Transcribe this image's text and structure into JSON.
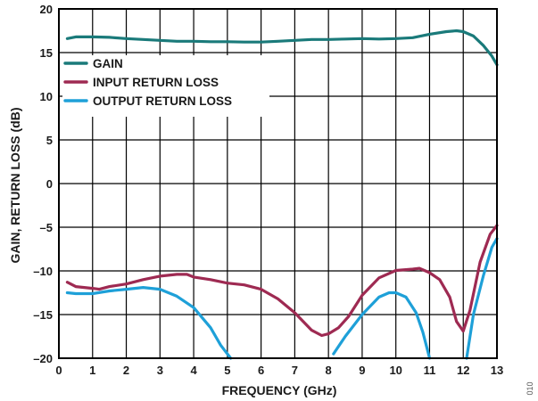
{
  "figure_id": "010",
  "chart_data": {
    "type": "line",
    "title": "",
    "xlabel": "FREQUENCY (GHz)",
    "ylabel": "GAIN, RETURN LOSS (dB)",
    "xlim": [
      0,
      13
    ],
    "ylim": [
      -20,
      20
    ],
    "x_ticks": [
      0,
      1,
      2,
      3,
      4,
      5,
      6,
      7,
      8,
      9,
      10,
      11,
      12,
      13
    ],
    "y_ticks": [
      20,
      15,
      10,
      5,
      0,
      -5,
      -10,
      -15,
      -20
    ],
    "x_tick_labels": [
      "0",
      "1",
      "2",
      "3",
      "4",
      "5",
      "6",
      "7",
      "8",
      "9",
      "10",
      "11",
      "12",
      "13"
    ],
    "y_tick_labels": [
      "20",
      "15",
      "10",
      "5",
      "0",
      "–5",
      "–10",
      "–15",
      "–20"
    ],
    "grid": true,
    "legend_position": "upper-left",
    "series": [
      {
        "name": "GAIN",
        "color": "#1a7a7a",
        "points": [
          [
            0.25,
            16.6
          ],
          [
            0.5,
            16.8
          ],
          [
            1,
            16.8
          ],
          [
            1.5,
            16.75
          ],
          [
            2,
            16.6
          ],
          [
            2.5,
            16.5
          ],
          [
            3,
            16.4
          ],
          [
            3.5,
            16.3
          ],
          [
            4,
            16.3
          ],
          [
            4.5,
            16.25
          ],
          [
            5,
            16.25
          ],
          [
            5.5,
            16.2
          ],
          [
            6,
            16.2
          ],
          [
            6.5,
            16.3
          ],
          [
            7,
            16.4
          ],
          [
            7.5,
            16.5
          ],
          [
            8,
            16.5
          ],
          [
            8.5,
            16.55
          ],
          [
            9,
            16.6
          ],
          [
            9.5,
            16.55
          ],
          [
            10,
            16.6
          ],
          [
            10.5,
            16.7
          ],
          [
            11,
            17.1
          ],
          [
            11.5,
            17.4
          ],
          [
            11.8,
            17.5
          ],
          [
            12,
            17.4
          ],
          [
            12.3,
            16.9
          ],
          [
            12.6,
            15.8
          ],
          [
            12.85,
            14.6
          ],
          [
            13,
            13.6
          ]
        ]
      },
      {
        "name": "INPUT RETURN LOSS",
        "color": "#9e2a52",
        "points": [
          [
            0.25,
            -11.3
          ],
          [
            0.5,
            -11.8
          ],
          [
            1,
            -12.0
          ],
          [
            1.2,
            -12.1
          ],
          [
            1.5,
            -11.8
          ],
          [
            2,
            -11.5
          ],
          [
            2.5,
            -11.0
          ],
          [
            3,
            -10.6
          ],
          [
            3.5,
            -10.4
          ],
          [
            3.8,
            -10.4
          ],
          [
            4,
            -10.7
          ],
          [
            4.5,
            -11.0
          ],
          [
            5,
            -11.4
          ],
          [
            5.5,
            -11.6
          ],
          [
            6,
            -12.1
          ],
          [
            6.5,
            -13.2
          ],
          [
            7,
            -14.8
          ],
          [
            7.5,
            -16.8
          ],
          [
            7.8,
            -17.4
          ],
          [
            8,
            -17.2
          ],
          [
            8.3,
            -16.5
          ],
          [
            8.6,
            -15.2
          ],
          [
            9,
            -12.8
          ],
          [
            9.5,
            -10.8
          ],
          [
            10,
            -9.95
          ],
          [
            10.5,
            -9.8
          ],
          [
            10.7,
            -9.7
          ],
          [
            11,
            -10.2
          ],
          [
            11.3,
            -11.0
          ],
          [
            11.6,
            -13.0
          ],
          [
            11.8,
            -15.8
          ],
          [
            12,
            -16.9
          ],
          [
            12.2,
            -14.5
          ],
          [
            12.5,
            -9.0
          ],
          [
            12.8,
            -5.8
          ],
          [
            13,
            -4.8
          ]
        ]
      },
      {
        "name": "OUTPUT RETURN LOSS",
        "color": "#1ea0d8",
        "points_segments": [
          [
            [
              0.25,
              -12.5
            ],
            [
              0.5,
              -12.6
            ],
            [
              1,
              -12.6
            ],
            [
              1.5,
              -12.3
            ],
            [
              2,
              -12.1
            ],
            [
              2.5,
              -11.9
            ],
            [
              3,
              -12.1
            ],
            [
              3.5,
              -12.9
            ],
            [
              4,
              -14.2
            ],
            [
              4.5,
              -16.5
            ],
            [
              4.8,
              -18.5
            ],
            [
              5.1,
              -20
            ]
          ],
          [
            [
              8.15,
              -19.5
            ],
            [
              8.5,
              -17.5
            ],
            [
              9,
              -15.0
            ],
            [
              9.5,
              -13.0
            ],
            [
              9.8,
              -12.5
            ],
            [
              10,
              -12.5
            ],
            [
              10.3,
              -13.0
            ],
            [
              10.6,
              -14.8
            ],
            [
              10.8,
              -17.0
            ],
            [
              11,
              -20
            ]
          ],
          [
            [
              12.1,
              -20
            ],
            [
              12.3,
              -15.0
            ],
            [
              12.6,
              -10.5
            ],
            [
              12.85,
              -7.3
            ],
            [
              13,
              -6.3
            ]
          ]
        ]
      }
    ]
  }
}
